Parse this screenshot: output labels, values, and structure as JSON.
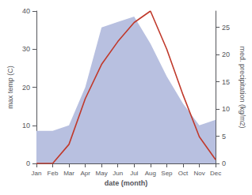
{
  "chart_data": {
    "type": "line",
    "xlabel": "date (month)",
    "ylabel": "max temp (C)",
    "y2label": "med. precipitation (kg/m2)",
    "categories": [
      "Jan",
      "Feb",
      "Mar",
      "Apr",
      "May",
      "Jun",
      "Jul",
      "Aug",
      "Sep",
      "Oct",
      "Nov",
      "Dec"
    ],
    "series": [
      {
        "type": "area",
        "color": "#b8c0e0",
        "axis": "y2",
        "values": [
          6,
          6,
          7,
          14,
          25,
          26,
          27,
          22,
          16,
          11,
          7,
          8
        ]
      },
      {
        "type": "line",
        "color": "#c0392b",
        "values": [
          0,
          0,
          5,
          17,
          26,
          32,
          37,
          40,
          30,
          18,
          7,
          1
        ]
      }
    ],
    "ylim": [
      0,
      40
    ],
    "yticks": [
      0,
      10,
      20,
      30,
      40
    ],
    "y2lim": [
      0,
      28
    ],
    "y2ticks": [
      0,
      5,
      10,
      15,
      20,
      25
    ],
    "grid": false
  }
}
